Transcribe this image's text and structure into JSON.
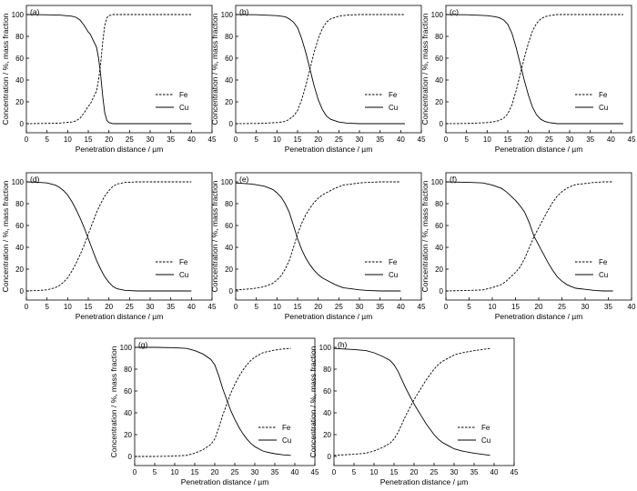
{
  "chart_data": [
    {
      "panel_label": "(a)",
      "type": "line",
      "xlabel": "Penetration distance / µm",
      "ylabel": "Concentration / %, mass fraction",
      "xlim": [
        0,
        45
      ],
      "ylim": [
        0,
        100
      ],
      "xticks": [
        "0",
        "5",
        "10",
        "15",
        "20",
        "25",
        "30",
        "35",
        "40",
        "45"
      ],
      "yticks": [
        "0",
        "20",
        "40",
        "60",
        "80",
        "100"
      ],
      "legend": {
        "position": "right",
        "entries": [
          "Fe",
          "Cu"
        ]
      },
      "series": [
        {
          "name": "Fe",
          "style": "dashed",
          "x": [
            0,
            4,
            8,
            11,
            12,
            13,
            14,
            15,
            15.5,
            16,
            16.5,
            17,
            17.5,
            18,
            18.5,
            19,
            19.5,
            20,
            21,
            23,
            26,
            30,
            35,
            40
          ],
          "values": [
            0,
            0.2,
            0.5,
            1.5,
            2.5,
            5,
            10,
            16,
            18,
            22,
            26,
            30,
            40,
            55,
            75,
            90,
            97,
            99,
            100,
            100,
            100,
            100,
            100,
            100
          ]
        },
        {
          "name": "Cu",
          "style": "solid",
          "x": [
            0,
            4,
            8,
            11,
            12,
            13,
            14,
            15,
            15.5,
            16,
            16.5,
            17,
            17.5,
            18,
            18.5,
            19,
            19.5,
            20,
            21,
            23,
            26,
            30,
            35,
            40
          ],
          "values": [
            100,
            99.8,
            99.5,
            98.5,
            97.5,
            95,
            90,
            84,
            82,
            78,
            74,
            70,
            60,
            45,
            25,
            10,
            3,
            1,
            0,
            0,
            0,
            0,
            0,
            0
          ]
        }
      ]
    },
    {
      "panel_label": "(b)",
      "type": "line",
      "xlabel": "Penetration distance / µm",
      "ylabel": "Concentration / %, mass fraction",
      "xlim": [
        0,
        45
      ],
      "ylim": [
        0,
        100
      ],
      "xticks": [
        "0",
        "5",
        "10",
        "15",
        "20",
        "25",
        "30",
        "35",
        "40",
        "45"
      ],
      "yticks": [
        "0",
        "20",
        "40",
        "60",
        "80",
        "100"
      ],
      "legend": {
        "position": "right",
        "entries": [
          "Fe",
          "Cu"
        ]
      },
      "series": [
        {
          "name": "Fe",
          "style": "dashed",
          "x": [
            0,
            5,
            10,
            12,
            13,
            14,
            15,
            16,
            17,
            18,
            19,
            20,
            21,
            22,
            23,
            25,
            27,
            30,
            35,
            41
          ],
          "values": [
            0,
            0.2,
            1,
            2,
            4,
            7,
            12,
            22,
            35,
            50,
            65,
            78,
            87,
            93,
            96,
            98.5,
            99.5,
            100,
            100,
            100
          ]
        },
        {
          "name": "Cu",
          "style": "solid",
          "x": [
            0,
            5,
            10,
            12,
            13,
            14,
            15,
            16,
            17,
            18,
            19,
            20,
            21,
            22,
            23,
            25,
            27,
            30,
            35,
            41
          ],
          "values": [
            100,
            99.8,
            99,
            98,
            96,
            93,
            88,
            78,
            65,
            50,
            35,
            22,
            13,
            7,
            4,
            1.5,
            0.5,
            0,
            0,
            0
          ]
        }
      ]
    },
    {
      "panel_label": "(c)",
      "type": "line",
      "xlabel": "Penetration distance / µm",
      "ylabel": "Concentration / %, mass fraction",
      "xlim": [
        0,
        45
      ],
      "ylim": [
        0,
        100
      ],
      "xticks": [
        "0",
        "5",
        "10",
        "15",
        "20",
        "25",
        "30",
        "35",
        "40",
        "45"
      ],
      "yticks": [
        "0",
        "20",
        "40",
        "60",
        "80",
        "100"
      ],
      "legend": {
        "position": "right",
        "entries": [
          "Fe",
          "Cu"
        ]
      },
      "series": [
        {
          "name": "Fe",
          "style": "dashed",
          "x": [
            0,
            5,
            10,
            12,
            13,
            14,
            15,
            16,
            17,
            18,
            19,
            20,
            21,
            22,
            23,
            24,
            25,
            27,
            30,
            35,
            43
          ],
          "values": [
            0,
            0.2,
            1,
            2,
            3,
            5,
            9,
            17,
            30,
            45,
            60,
            74,
            85,
            92,
            96,
            98,
            99,
            100,
            100,
            100,
            100
          ]
        },
        {
          "name": "Cu",
          "style": "solid",
          "x": [
            0,
            5,
            10,
            12,
            13,
            14,
            15,
            16,
            17,
            18,
            19,
            20,
            21,
            22,
            23,
            24,
            25,
            27,
            30,
            35,
            43
          ],
          "values": [
            100,
            99.8,
            99,
            98,
            97,
            95,
            91,
            83,
            70,
            55,
            40,
            26,
            15,
            8,
            4,
            2,
            1,
            0,
            0,
            0,
            0
          ]
        }
      ]
    },
    {
      "panel_label": "(d)",
      "type": "line",
      "xlabel": "Penetration distance / µm",
      "ylabel": "Concentration / %, mass fraction",
      "xlim": [
        0,
        45
      ],
      "ylim": [
        0,
        100
      ],
      "xticks": [
        "0",
        "5",
        "10",
        "15",
        "20",
        "25",
        "30",
        "35",
        "40",
        "45"
      ],
      "yticks": [
        "0",
        "20",
        "40",
        "60",
        "80",
        "100"
      ],
      "legend": {
        "position": "right",
        "entries": [
          "Fe",
          "Cu"
        ]
      },
      "series": [
        {
          "name": "Fe",
          "style": "dashed",
          "x": [
            0,
            3,
            5,
            7,
            8,
            9,
            10,
            11,
            12,
            13,
            14,
            15,
            16,
            17,
            18,
            19,
            20,
            21,
            22,
            24,
            27,
            30,
            35,
            40
          ],
          "values": [
            0,
            0.5,
            1,
            3,
            5,
            8,
            12,
            18,
            25,
            33,
            42,
            52,
            62,
            72,
            80,
            87,
            92,
            96,
            98,
            99.5,
            100,
            100,
            100,
            100
          ]
        },
        {
          "name": "Cu",
          "style": "solid",
          "x": [
            0,
            3,
            5,
            7,
            8,
            9,
            10,
            11,
            12,
            13,
            14,
            15,
            16,
            17,
            18,
            19,
            20,
            21,
            22,
            24,
            27,
            30,
            35,
            40
          ],
          "values": [
            100,
            99.5,
            99,
            97,
            95,
            92,
            88,
            82,
            75,
            67,
            58,
            48,
            38,
            28,
            20,
            13,
            8,
            4,
            2,
            0.5,
            0,
            0,
            0,
            0
          ]
        }
      ]
    },
    {
      "panel_label": "(e)",
      "type": "line",
      "xlabel": "Penetration distance / µm",
      "ylabel": "Concentration / %, mass fraction",
      "xlim": [
        0,
        45
      ],
      "ylim": [
        0,
        100
      ],
      "xticks": [
        "0",
        "5",
        "10",
        "15",
        "20",
        "25",
        "30",
        "35",
        "40",
        "45"
      ],
      "yticks": [
        "0",
        "20",
        "40",
        "60",
        "80",
        "100"
      ],
      "legend": {
        "position": "right",
        "entries": [
          "Fe",
          "Cu"
        ]
      },
      "series": [
        {
          "name": "Fe",
          "style": "dashed",
          "x": [
            0,
            4,
            7,
            9,
            10,
            11,
            12,
            13,
            14,
            15,
            16,
            17,
            18,
            19,
            20,
            21,
            22,
            24,
            26,
            28,
            30,
            32,
            35,
            38,
            40
          ],
          "values": [
            1,
            2,
            4,
            7,
            10,
            14,
            20,
            28,
            40,
            52,
            62,
            70,
            76,
            81,
            85,
            88,
            90,
            94,
            97,
            98,
            99,
            99.5,
            100,
            100,
            100
          ]
        },
        {
          "name": "Cu",
          "style": "solid",
          "x": [
            0,
            4,
            7,
            9,
            10,
            11,
            12,
            13,
            14,
            15,
            16,
            17,
            18,
            19,
            20,
            21,
            22,
            24,
            26,
            28,
            30,
            32,
            35,
            38,
            40
          ],
          "values": [
            99,
            98,
            96,
            93,
            90,
            86,
            80,
            72,
            60,
            48,
            38,
            30,
            24,
            19,
            15,
            12,
            10,
            6,
            3,
            2,
            1,
            0.5,
            0,
            0,
            0
          ]
        }
      ]
    },
    {
      "panel_label": "(f)",
      "type": "line",
      "xlabel": "Penetration distance / µm",
      "ylabel": "Concentration / %, mass fraction",
      "xlim": [
        0,
        40
      ],
      "ylim": [
        0,
        100
      ],
      "xticks": [
        "0",
        "5",
        "10",
        "15",
        "20",
        "25",
        "30",
        "35",
        "40"
      ],
      "yticks": [
        "0",
        "20",
        "40",
        "60",
        "80",
        "100"
      ],
      "legend": {
        "position": "right",
        "entries": [
          "Fe",
          "Cu"
        ]
      },
      "series": [
        {
          "name": "Fe",
          "style": "dashed",
          "x": [
            0,
            5,
            8,
            10,
            12,
            13,
            14,
            15,
            16,
            17,
            18,
            19,
            20,
            21,
            22,
            23,
            24,
            25,
            26,
            27,
            28,
            30,
            32,
            34,
            36
          ],
          "values": [
            0,
            0.5,
            1,
            3,
            6,
            9,
            13,
            17,
            22,
            30,
            40,
            50,
            58,
            66,
            74,
            81,
            87,
            91,
            94,
            96,
            97.5,
            98.5,
            99.5,
            100,
            100
          ]
        },
        {
          "name": "Cu",
          "style": "solid",
          "x": [
            0,
            5,
            8,
            10,
            12,
            13,
            14,
            15,
            16,
            17,
            18,
            19,
            20,
            21,
            22,
            23,
            24,
            25,
            26,
            27,
            28,
            30,
            32,
            34,
            36
          ],
          "values": [
            100,
            99.5,
            99,
            97,
            94,
            91,
            87,
            83,
            78,
            72,
            62,
            50,
            42,
            34,
            26,
            19,
            13,
            9,
            6,
            4,
            2.5,
            1.5,
            0.5,
            0,
            0
          ]
        }
      ]
    },
    {
      "panel_label": "(g)",
      "type": "line",
      "xlabel": "Penetration distance / µm",
      "ylabel": "Concentration / %, mass fraction",
      "xlim": [
        0,
        45
      ],
      "ylim": [
        0,
        100
      ],
      "xticks": [
        "0",
        "5",
        "10",
        "15",
        "20",
        "25",
        "30",
        "35",
        "40",
        "45"
      ],
      "yticks": [
        "0",
        "20",
        "40",
        "60",
        "80",
        "100"
      ],
      "legend": {
        "position": "right",
        "entries": [
          "Fe",
          "Cu"
        ]
      },
      "series": [
        {
          "name": "Fe",
          "style": "dashed",
          "x": [
            0,
            5,
            10,
            13,
            15,
            17,
            19,
            20,
            21,
            22,
            23,
            24,
            25,
            26,
            27,
            28,
            29,
            30,
            31,
            32,
            33,
            35,
            37,
            39
          ],
          "values": [
            0,
            0,
            0.3,
            1,
            3,
            6,
            11,
            16,
            26,
            38,
            48,
            58,
            66,
            73,
            79,
            84,
            88,
            91,
            93,
            95,
            96,
            97.5,
            98.5,
            99
          ]
        },
        {
          "name": "Cu",
          "style": "solid",
          "x": [
            0,
            5,
            10,
            13,
            15,
            17,
            19,
            20,
            21,
            22,
            23,
            24,
            25,
            26,
            27,
            28,
            29,
            30,
            31,
            32,
            33,
            35,
            37,
            39
          ],
          "values": [
            100,
            100,
            99.7,
            99,
            97,
            94,
            89,
            84,
            74,
            62,
            52,
            42,
            34,
            27,
            21,
            16,
            12,
            9,
            7,
            5,
            4,
            2.5,
            1.5,
            1
          ]
        }
      ]
    },
    {
      "panel_label": "(h)",
      "type": "line",
      "xlabel": "Penetration distance / µm",
      "ylabel": "Concentration / %, mass fraction",
      "xlim": [
        0,
        45
      ],
      "ylim": [
        0,
        100
      ],
      "xticks": [
        "0",
        "5",
        "10",
        "15",
        "20",
        "25",
        "30",
        "35",
        "40",
        "45"
      ],
      "yticks": [
        "0",
        "20",
        "40",
        "60",
        "80",
        "100"
      ],
      "legend": {
        "position": "right",
        "entries": [
          "Fe",
          "Cu"
        ]
      },
      "series": [
        {
          "name": "Fe",
          "style": "dashed",
          "x": [
            0,
            5,
            8,
            10,
            12,
            14,
            15,
            16,
            17,
            18,
            19,
            20,
            21,
            22,
            23,
            24,
            25,
            26,
            27,
            28,
            29,
            30,
            32,
            35,
            38,
            39
          ],
          "values": [
            1,
            2,
            3,
            5,
            8,
            12,
            16,
            22,
            30,
            38,
            45,
            52,
            58,
            64,
            70,
            75,
            80,
            84,
            87,
            89,
            91,
            93,
            95,
            97,
            98.5,
            99
          ]
        },
        {
          "name": "Cu",
          "style": "solid",
          "x": [
            0,
            5,
            8,
            10,
            12,
            14,
            15,
            16,
            17,
            18,
            19,
            20,
            21,
            22,
            23,
            24,
            25,
            26,
            27,
            28,
            29,
            30,
            32,
            35,
            38,
            39
          ],
          "values": [
            99,
            98,
            97,
            95,
            92,
            88,
            84,
            78,
            70,
            62,
            55,
            48,
            42,
            36,
            30,
            25,
            20,
            16,
            13,
            11,
            9,
            7,
            5,
            3,
            1.5,
            1
          ]
        }
      ]
    }
  ]
}
